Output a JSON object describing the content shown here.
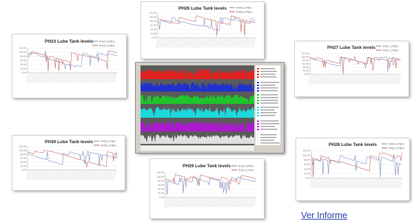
{
  "link": {
    "label": "Ver Informe"
  },
  "charts": {
    "ph26": {
      "title": "PH26 Lube Tank levels",
      "legend": [
        "PH26 LoTNK1",
        "PH26 LoTNK2"
      ]
    },
    "ph23": {
      "title": "PH23 Lube Tank levels",
      "legend": [
        "PH23 LoTNK1",
        "PH23 LoTNK2"
      ]
    },
    "ph27": {
      "title": "PH27 Lube Tank levels",
      "legend": [
        "PH27 LoTNK1",
        "PH27 LoTNK2"
      ]
    },
    "ph30": {
      "title": "PH30 Lube Tank levels",
      "legend": [
        "PH30 LoTNK1",
        "PH30 LoTNK2"
      ]
    },
    "ph29": {
      "title": "PH29 Lube Tank levels",
      "legend": [
        "PH29 LoTNK1",
        "PH29 LoTNK2"
      ]
    },
    "ph28": {
      "title": "PH28 Lube Tank levels",
      "legend": [
        "PH28 LoTNK1",
        "PH28 LoTNK2"
      ]
    }
  },
  "yticks": [
    "120.0%",
    "100.0%",
    "80.0%",
    "60.0%",
    "40.0%",
    "20.0%",
    "0.0%"
  ],
  "colors": {
    "series1": "#6a7fb8",
    "series2": "#c0504d",
    "link": "#1f3fa8"
  }
}
